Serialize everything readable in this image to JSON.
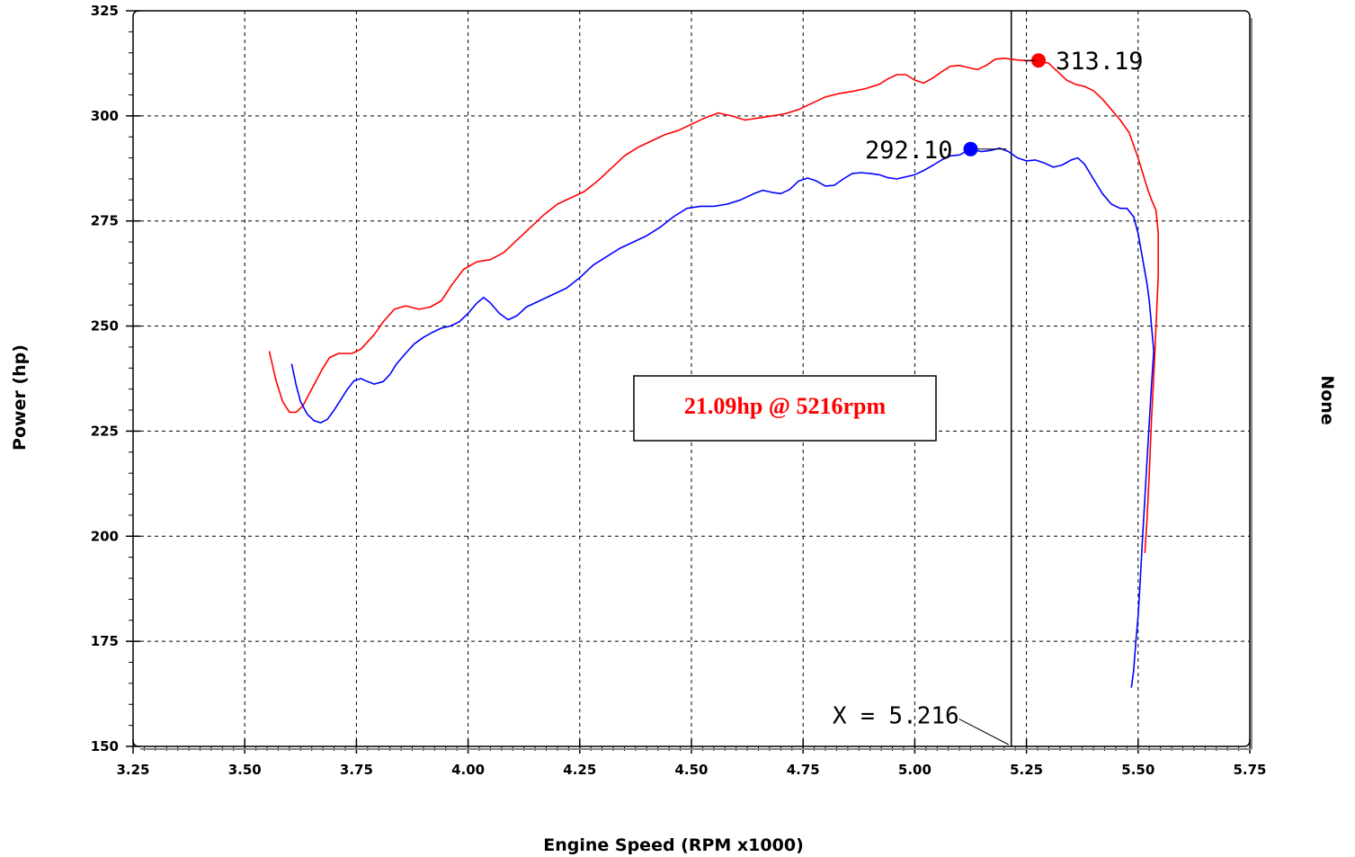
{
  "chart_data": {
    "type": "line",
    "xlabel": "Engine Speed (RPM x1000)",
    "ylabel": "Power (hp)",
    "right_label": "None",
    "xlim": [
      3.25,
      5.75
    ],
    "ylim": [
      150,
      325
    ],
    "x_ticks": [
      "3.25",
      "3.50",
      "3.75",
      "4.00",
      "4.25",
      "4.50",
      "4.75",
      "5.00",
      "5.25",
      "5.50",
      "5.75"
    ],
    "y_ticks": [
      "150",
      "175",
      "200",
      "225",
      "250",
      "275",
      "300",
      "325"
    ],
    "grid": true,
    "colors": {
      "series_red": "#ff0000",
      "series_blue": "#0000ff",
      "grid": "#000000",
      "annotation_text": "#ff0000"
    },
    "series": [
      {
        "color": "#ff0000",
        "points": [
          [
            3.555,
            244
          ],
          [
            3.57,
            237
          ],
          [
            3.585,
            232
          ],
          [
            3.6,
            229.5
          ],
          [
            3.615,
            229.5
          ],
          [
            3.63,
            231
          ],
          [
            3.645,
            234
          ],
          [
            3.66,
            237
          ],
          [
            3.675,
            240
          ],
          [
            3.69,
            242.5
          ],
          [
            3.71,
            243.5
          ],
          [
            3.74,
            243.5
          ],
          [
            3.76,
            244.5
          ],
          [
            3.79,
            248
          ],
          [
            3.81,
            251
          ],
          [
            3.835,
            254
          ],
          [
            3.86,
            254.8
          ],
          [
            3.89,
            254
          ],
          [
            3.915,
            254.5
          ],
          [
            3.94,
            256
          ],
          [
            3.965,
            260
          ],
          [
            3.99,
            263.5
          ],
          [
            4.02,
            265.3
          ],
          [
            4.05,
            265.8
          ],
          [
            4.08,
            267.5
          ],
          [
            4.11,
            270.5
          ],
          [
            4.14,
            273.5
          ],
          [
            4.17,
            276.5
          ],
          [
            4.2,
            279
          ],
          [
            4.23,
            280.5
          ],
          [
            4.26,
            282
          ],
          [
            4.29,
            284.5
          ],
          [
            4.32,
            287.5
          ],
          [
            4.35,
            290.5
          ],
          [
            4.38,
            292.5
          ],
          [
            4.41,
            294
          ],
          [
            4.44,
            295.5
          ],
          [
            4.47,
            296.5
          ],
          [
            4.5,
            298
          ],
          [
            4.53,
            299.5
          ],
          [
            4.56,
            300.7
          ],
          [
            4.59,
            300
          ],
          [
            4.62,
            299
          ],
          [
            4.65,
            299.5
          ],
          [
            4.68,
            300
          ],
          [
            4.71,
            300.5
          ],
          [
            4.74,
            301.5
          ],
          [
            4.77,
            303
          ],
          [
            4.8,
            304.5
          ],
          [
            4.83,
            305.3
          ],
          [
            4.86,
            305.8
          ],
          [
            4.89,
            306.5
          ],
          [
            4.92,
            307.5
          ],
          [
            4.94,
            308.8
          ],
          [
            4.96,
            309.8
          ],
          [
            4.98,
            309.8
          ],
          [
            5.0,
            308.5
          ],
          [
            5.02,
            307.8
          ],
          [
            5.04,
            309
          ],
          [
            5.06,
            310.5
          ],
          [
            5.08,
            311.8
          ],
          [
            5.1,
            312
          ],
          [
            5.12,
            311.5
          ],
          [
            5.14,
            311
          ],
          [
            5.16,
            312
          ],
          [
            5.18,
            313.5
          ],
          [
            5.2,
            313.7
          ],
          [
            5.23,
            313.3
          ],
          [
            5.25,
            313.1
          ],
          [
            5.277,
            313.19
          ],
          [
            5.3,
            312.5
          ],
          [
            5.32,
            310.5
          ],
          [
            5.34,
            308.5
          ],
          [
            5.36,
            307.5
          ],
          [
            5.38,
            307
          ],
          [
            5.4,
            306
          ],
          [
            5.42,
            304
          ],
          [
            5.44,
            301.5
          ],
          [
            5.46,
            299
          ],
          [
            5.48,
            296
          ],
          [
            5.49,
            293
          ],
          [
            5.5,
            290
          ],
          [
            5.51,
            286.5
          ],
          [
            5.52,
            283
          ],
          [
            5.53,
            280
          ],
          [
            5.54,
            277.5
          ],
          [
            5.545,
            272
          ],
          [
            5.545,
            262
          ],
          [
            5.54,
            250
          ],
          [
            5.535,
            238
          ],
          [
            5.53,
            228
          ],
          [
            5.525,
            215
          ],
          [
            5.52,
            204
          ],
          [
            5.515,
            196
          ]
        ]
      },
      {
        "color": "#0000ff",
        "points": [
          [
            3.605,
            241
          ],
          [
            3.615,
            236
          ],
          [
            3.625,
            232
          ],
          [
            3.64,
            229
          ],
          [
            3.655,
            227.5
          ],
          [
            3.67,
            227
          ],
          [
            3.685,
            227.8
          ],
          [
            3.7,
            230
          ],
          [
            3.715,
            232.5
          ],
          [
            3.73,
            235
          ],
          [
            3.745,
            237
          ],
          [
            3.76,
            237.5
          ],
          [
            3.775,
            236.8
          ],
          [
            3.79,
            236.2
          ],
          [
            3.81,
            236.8
          ],
          [
            3.825,
            238.5
          ],
          [
            3.84,
            241
          ],
          [
            3.86,
            243.5
          ],
          [
            3.88,
            245.8
          ],
          [
            3.9,
            247.3
          ],
          [
            3.92,
            248.5
          ],
          [
            3.94,
            249.5
          ],
          [
            3.96,
            250
          ],
          [
            3.98,
            251
          ],
          [
            4.0,
            253
          ],
          [
            4.02,
            255.5
          ],
          [
            4.035,
            256.8
          ],
          [
            4.05,
            255.5
          ],
          [
            4.07,
            253
          ],
          [
            4.09,
            251.5
          ],
          [
            4.11,
            252.5
          ],
          [
            4.13,
            254.5
          ],
          [
            4.16,
            256
          ],
          [
            4.19,
            257.5
          ],
          [
            4.22,
            259
          ],
          [
            4.25,
            261.5
          ],
          [
            4.28,
            264.5
          ],
          [
            4.31,
            266.5
          ],
          [
            4.34,
            268.5
          ],
          [
            4.37,
            270
          ],
          [
            4.4,
            271.5
          ],
          [
            4.43,
            273.5
          ],
          [
            4.46,
            276
          ],
          [
            4.49,
            278
          ],
          [
            4.52,
            278.5
          ],
          [
            4.55,
            278.5
          ],
          [
            4.58,
            279
          ],
          [
            4.61,
            280
          ],
          [
            4.64,
            281.5
          ],
          [
            4.66,
            282.3
          ],
          [
            4.68,
            281.8
          ],
          [
            4.7,
            281.5
          ],
          [
            4.72,
            282.5
          ],
          [
            4.74,
            284.5
          ],
          [
            4.76,
            285.2
          ],
          [
            4.78,
            284.5
          ],
          [
            4.8,
            283.3
          ],
          [
            4.82,
            283.5
          ],
          [
            4.84,
            285
          ],
          [
            4.86,
            286.3
          ],
          [
            4.88,
            286.5
          ],
          [
            4.9,
            286.3
          ],
          [
            4.92,
            286
          ],
          [
            4.94,
            285.3
          ],
          [
            4.96,
            285
          ],
          [
            4.98,
            285.5
          ],
          [
            5.0,
            286
          ],
          [
            5.02,
            287
          ],
          [
            5.04,
            288.2
          ],
          [
            5.06,
            289.5
          ],
          [
            5.08,
            290.5
          ],
          [
            5.1,
            290.7
          ],
          [
            5.125,
            292.1
          ],
          [
            5.15,
            291.5
          ],
          [
            5.17,
            291.8
          ],
          [
            5.19,
            292.3
          ],
          [
            5.21,
            291.5
          ],
          [
            5.23,
            290
          ],
          [
            5.25,
            289.3
          ],
          [
            5.27,
            289.5
          ],
          [
            5.29,
            288.8
          ],
          [
            5.31,
            287.8
          ],
          [
            5.33,
            288.3
          ],
          [
            5.35,
            289.5
          ],
          [
            5.365,
            290
          ],
          [
            5.38,
            288.5
          ],
          [
            5.4,
            285
          ],
          [
            5.42,
            281.5
          ],
          [
            5.44,
            279
          ],
          [
            5.46,
            278
          ],
          [
            5.475,
            278
          ],
          [
            5.49,
            276
          ],
          [
            5.5,
            272
          ],
          [
            5.51,
            266
          ],
          [
            5.52,
            260
          ],
          [
            5.525,
            256
          ],
          [
            5.53,
            250
          ],
          [
            5.535,
            244
          ],
          [
            5.53,
            236
          ],
          [
            5.525,
            227
          ],
          [
            5.52,
            218
          ],
          [
            5.515,
            209
          ],
          [
            5.51,
            200
          ],
          [
            5.505,
            190
          ],
          [
            5.5,
            181
          ],
          [
            5.495,
            175
          ],
          [
            5.49,
            168
          ],
          [
            5.485,
            164
          ]
        ]
      }
    ],
    "peaks": [
      {
        "color": "#ff0000",
        "x": 5.277,
        "y": 313.19,
        "label": "313.19"
      },
      {
        "color": "#0000ff",
        "x": 5.125,
        "y": 292.1,
        "label": "292.10"
      }
    ],
    "cursor": {
      "x": 5.216,
      "label": "X = 5.216"
    },
    "annotation": "21.09hp @ 5216rpm"
  }
}
